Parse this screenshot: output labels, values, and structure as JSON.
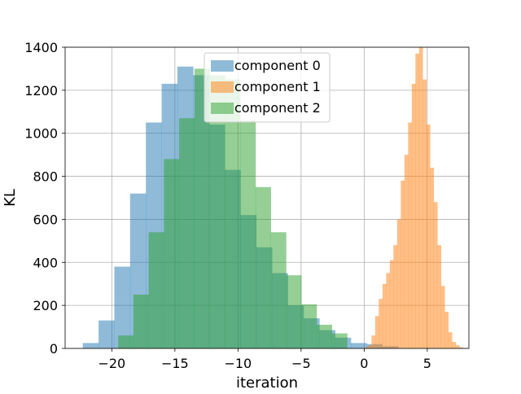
{
  "chart_data": {
    "type": "histogram",
    "title": "",
    "xlabel": "iteration",
    "ylabel": "KL",
    "xlim": [
      -23.7,
      8.3
    ],
    "ylim": [
      0,
      1400
    ],
    "xticks": [
      -20,
      -15,
      -10,
      -5,
      0,
      5
    ],
    "xtick_labels": [
      "−20",
      "−15",
      "−10",
      "−5",
      "0",
      "5"
    ],
    "yticks": [
      0,
      200,
      400,
      600,
      800,
      1000,
      1200,
      1400
    ],
    "ytick_labels": [
      "0",
      "200",
      "400",
      "600",
      "800",
      "1000",
      "1200",
      "1400"
    ],
    "grid": true,
    "legend_position": "upper center",
    "alpha": 0.5,
    "series": [
      {
        "name": "component 0",
        "color": "#1f77b4",
        "x_start": -22.3,
        "bin_width": 1.25,
        "values": [
          25,
          130,
          380,
          720,
          1050,
          1230,
          1310,
          1270,
          1040,
          830,
          620,
          470,
          350,
          200,
          140,
          85,
          50,
          25,
          20,
          10
        ]
      },
      {
        "name": "component 1",
        "color": "#ff7f0e",
        "x_start": 0.0,
        "bin_width": 0.29,
        "values": [
          5,
          15,
          60,
          150,
          230,
          300,
          350,
          410,
          480,
          600,
          780,
          900,
          1050,
          1230,
          1370,
          1400,
          1250,
          1040,
          840,
          680,
          480,
          290,
          170,
          75,
          30,
          15,
          5
        ]
      },
      {
        "name": "component 2",
        "color": "#2ca02c",
        "x_start": -19.5,
        "bin_width": 1.21,
        "values": [
          60,
          250,
          540,
          880,
          1070,
          1300,
          1270,
          1250,
          1060,
          750,
          540,
          340,
          205,
          110,
          70
        ]
      }
    ]
  }
}
